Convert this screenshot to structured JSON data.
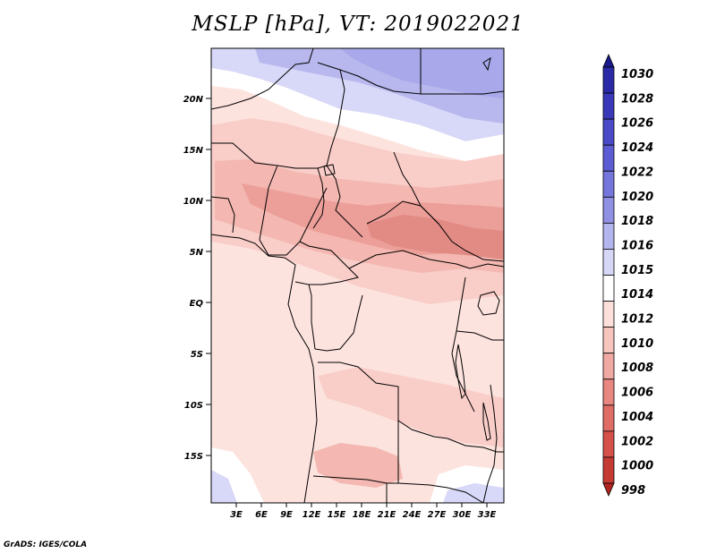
{
  "title": "MSLP [hPa], VT: 2019022021",
  "footer": "GrADS: IGES/COLA",
  "lat_labels": [
    "20N",
    "15N",
    "10N",
    "5N",
    "EQ",
    "5S",
    "10S",
    "15S"
  ],
  "lon_labels": [
    "3E",
    "6E",
    "9E",
    "12E",
    "15E",
    "18E",
    "21E",
    "24E",
    "27E",
    "30E",
    "33E"
  ],
  "colorbar": {
    "levels": [
      "1030",
      "1028",
      "1026",
      "1024",
      "1022",
      "1020",
      "1018",
      "1016",
      "1015",
      "1014",
      "1012",
      "1010",
      "1008",
      "1006",
      "1004",
      "1002",
      "1000",
      "998"
    ],
    "colors": [
      "#1a1a8c",
      "#2a2aa6",
      "#3838b8",
      "#4a4ac8",
      "#5c5cd4",
      "#7575dc",
      "#9090e4",
      "#b4b4ee",
      "#d6d6f6",
      "#ffffff",
      "#fde0dc",
      "#f8c4be",
      "#f0a8a2",
      "#e88680",
      "#e06c66",
      "#d6504a",
      "#c63a34",
      "#b02420"
    ]
  },
  "field_colors": {
    "p1016": "#b8b8ee",
    "p1017": "#a8a8ea",
    "p1015": "#d8d8f8",
    "p1014": "#ffffff",
    "p1012": "#fde3de",
    "p1011": "#f9cdc8",
    "p1010": "#f4b7b1",
    "p1009": "#ec9e98",
    "p1008": "#e28a84"
  }
}
